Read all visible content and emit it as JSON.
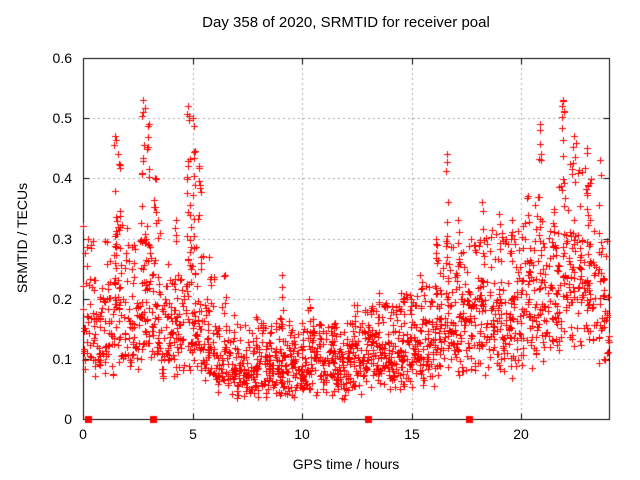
{
  "chart_data": {
    "type": "scatter",
    "title": "Day 358 of 2020, SRMTID for receiver poal",
    "xlabel": "GPS time / hours",
    "ylabel": "SRMTID / TECUs",
    "xlim": [
      0,
      24
    ],
    "ylim": [
      0,
      0.6
    ],
    "xticks": [
      0,
      5,
      10,
      15,
      20
    ],
    "yticks": [
      0,
      0.1,
      0.2,
      0.3,
      0.4,
      0.5,
      0.6
    ],
    "grid": true,
    "grid_style": "dotted",
    "grid_color": "#aaaaaa",
    "border_color": "#000000",
    "legend": "none",
    "seed": 358,
    "series": [
      {
        "name": "SRMTID",
        "marker": "plus",
        "color": "#ff0000",
        "summary": "~2200 points; quiet band 0.05-0.15 TECU between hours 6-15; enhanced activity 0.15-0.35 with vertical spike columns reaching 0.53 near hours 1.5-5.5 and 16.5-23.5",
        "halfhour_bins_t0_median_max_count": [
          [
            0.0,
            0.15,
            0.3,
            38
          ],
          [
            0.5,
            0.14,
            0.24,
            38
          ],
          [
            1.0,
            0.16,
            0.3,
            40
          ],
          [
            1.5,
            0.19,
            0.34,
            40
          ],
          [
            2.0,
            0.16,
            0.3,
            40
          ],
          [
            2.5,
            0.18,
            0.34,
            40
          ],
          [
            3.0,
            0.18,
            0.34,
            40
          ],
          [
            3.5,
            0.14,
            0.28,
            38
          ],
          [
            4.0,
            0.14,
            0.3,
            38
          ],
          [
            4.5,
            0.17,
            0.34,
            40
          ],
          [
            5.0,
            0.16,
            0.32,
            38
          ],
          [
            5.5,
            0.12,
            0.24,
            40
          ],
          [
            6.0,
            0.1,
            0.2,
            42
          ],
          [
            6.5,
            0.09,
            0.18,
            42
          ],
          [
            7.0,
            0.085,
            0.16,
            44
          ],
          [
            7.5,
            0.08,
            0.15,
            44
          ],
          [
            8.0,
            0.09,
            0.16,
            44
          ],
          [
            8.5,
            0.09,
            0.16,
            44
          ],
          [
            9.0,
            0.09,
            0.17,
            44
          ],
          [
            9.5,
            0.09,
            0.15,
            44
          ],
          [
            10.0,
            0.1,
            0.17,
            44
          ],
          [
            10.5,
            0.1,
            0.16,
            44
          ],
          [
            11.0,
            0.09,
            0.16,
            44
          ],
          [
            11.5,
            0.08,
            0.15,
            44
          ],
          [
            12.0,
            0.1,
            0.18,
            44
          ],
          [
            12.5,
            0.11,
            0.19,
            44
          ],
          [
            13.0,
            0.11,
            0.19,
            44
          ],
          [
            13.5,
            0.115,
            0.2,
            44
          ],
          [
            14.0,
            0.11,
            0.19,
            44
          ],
          [
            14.5,
            0.12,
            0.21,
            44
          ],
          [
            15.0,
            0.12,
            0.22,
            44
          ],
          [
            15.5,
            0.13,
            0.25,
            42
          ],
          [
            16.0,
            0.14,
            0.28,
            42
          ],
          [
            16.5,
            0.16,
            0.3,
            42
          ],
          [
            17.0,
            0.15,
            0.28,
            42
          ],
          [
            17.5,
            0.16,
            0.3,
            42
          ],
          [
            18.0,
            0.17,
            0.31,
            42
          ],
          [
            18.5,
            0.17,
            0.32,
            42
          ],
          [
            19.0,
            0.18,
            0.31,
            42
          ],
          [
            19.5,
            0.18,
            0.32,
            42
          ],
          [
            20.0,
            0.19,
            0.34,
            42
          ],
          [
            20.5,
            0.21,
            0.38,
            42
          ],
          [
            21.0,
            0.22,
            0.42,
            40
          ],
          [
            21.5,
            0.21,
            0.4,
            40
          ],
          [
            22.0,
            0.23,
            0.44,
            40
          ],
          [
            22.5,
            0.24,
            0.42,
            40
          ],
          [
            23.0,
            0.21,
            0.4,
            40
          ],
          [
            23.5,
            0.17,
            0.34,
            36
          ]
        ],
        "spike_columns_t_top_count": [
          [
            0.03,
            0.32,
            3
          ],
          [
            1.45,
            0.47,
            12
          ],
          [
            1.62,
            0.44,
            9
          ],
          [
            2.75,
            0.53,
            14
          ],
          [
            3.0,
            0.49,
            11
          ],
          [
            3.3,
            0.4,
            8
          ],
          [
            4.2,
            0.33,
            6
          ],
          [
            4.8,
            0.52,
            15
          ],
          [
            5.05,
            0.5,
            11
          ],
          [
            5.3,
            0.42,
            8
          ],
          [
            5.75,
            0.27,
            6
          ],
          [
            6.5,
            0.24,
            5
          ],
          [
            7.9,
            0.17,
            4
          ],
          [
            9.1,
            0.24,
            6
          ],
          [
            10.3,
            0.2,
            5
          ],
          [
            11.5,
            0.16,
            4
          ],
          [
            12.4,
            0.19,
            4
          ],
          [
            13.5,
            0.21,
            5
          ],
          [
            14.6,
            0.2,
            5
          ],
          [
            15.4,
            0.24,
            6
          ],
          [
            16.1,
            0.3,
            6
          ],
          [
            16.6,
            0.44,
            11
          ],
          [
            17.1,
            0.33,
            7
          ],
          [
            18.2,
            0.36,
            7
          ],
          [
            19.0,
            0.34,
            6
          ],
          [
            19.6,
            0.33,
            6
          ],
          [
            20.3,
            0.37,
            7
          ],
          [
            20.85,
            0.49,
            12
          ],
          [
            21.9,
            0.53,
            15
          ],
          [
            22.4,
            0.47,
            10
          ],
          [
            23.0,
            0.45,
            9
          ],
          [
            23.6,
            0.43,
            8
          ]
        ]
      },
      {
        "name": "axis-flag-markers",
        "marker": "filled-square",
        "color": "#ff0000",
        "y": 0,
        "x": [
          0.25,
          3.2,
          13.0,
          17.6
        ]
      }
    ]
  }
}
